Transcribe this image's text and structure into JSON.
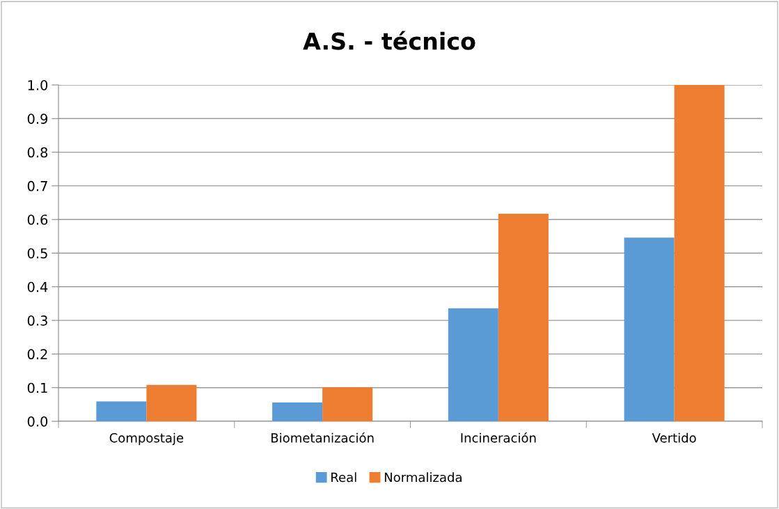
{
  "chart_data": {
    "type": "bar",
    "title": "A.S. - técnico",
    "categories": [
      "Compostaje",
      "Biometanización",
      "Incineración",
      "Vertido"
    ],
    "series": [
      {
        "name": "Real",
        "color": "#5b9bd5",
        "values": [
          0.059,
          0.056,
          0.336,
          0.546
        ]
      },
      {
        "name": "Normalizada",
        "color": "#ed7d31",
        "values": [
          0.108,
          0.101,
          0.617,
          1.0
        ]
      }
    ],
    "ylim": [
      0,
      1.0
    ],
    "yticks": [
      {
        "value": 0,
        "label": "0.0"
      },
      {
        "value": 0.1,
        "label": "0.1"
      },
      {
        "value": 0.2,
        "label": "0.2"
      },
      {
        "value": 0.3,
        "label": "0.3"
      },
      {
        "value": 0.4,
        "label": "0.4"
      },
      {
        "value": 0.5,
        "label": "0.5"
      },
      {
        "value": 0.6,
        "label": "0.6"
      },
      {
        "value": 0.7,
        "label": "0.7"
      },
      {
        "value": 0.8,
        "label": "0.8"
      },
      {
        "value": 0.9,
        "label": "0.9"
      },
      {
        "value": 1.0,
        "label": "1.0"
      }
    ],
    "grid": "y",
    "legend": "bottom"
  }
}
